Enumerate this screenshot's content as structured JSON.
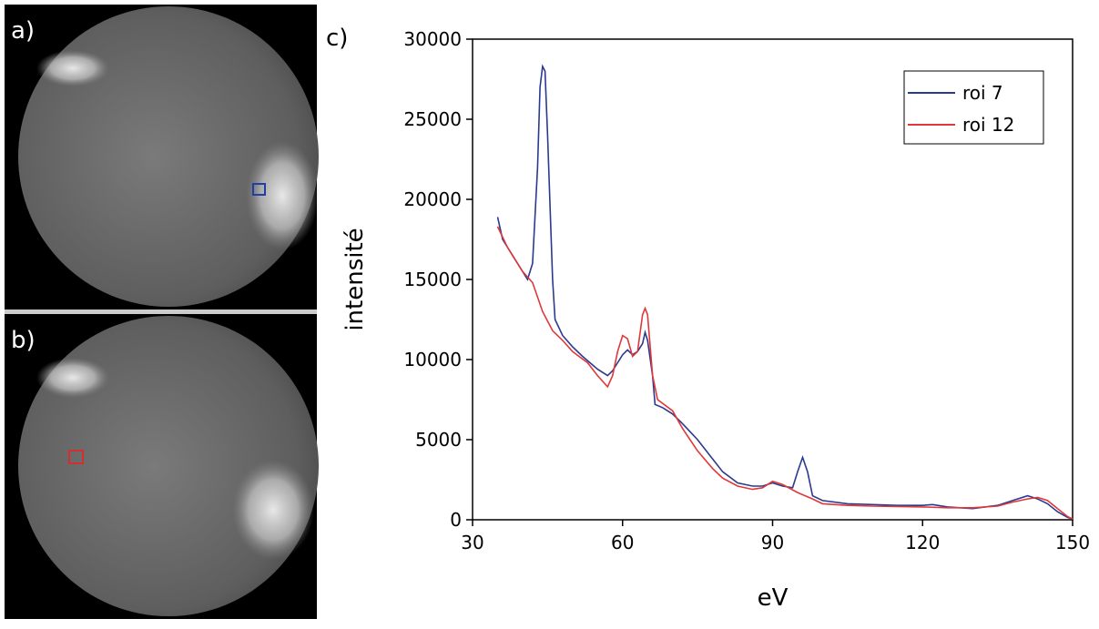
{
  "panels": {
    "a": "a)",
    "b": "b)"
  },
  "chart_data": {
    "type": "line",
    "panel_label": "c)",
    "xlabel": "eV",
    "ylabel": "intensité",
    "xlim": [
      30,
      150
    ],
    "xticks": [
      30,
      60,
      90,
      120,
      150
    ],
    "ylim": [
      0,
      30000
    ],
    "yticks": [
      0,
      5000,
      10000,
      15000,
      20000,
      25000,
      30000
    ],
    "legend": "upper right",
    "series": [
      {
        "name": "roi 7",
        "color": "#2b3a8f",
        "x": [
          35,
          36,
          38,
          40,
          41,
          42,
          43,
          43.5,
          44,
          44.5,
          45,
          46,
          46.5,
          48,
          50,
          52,
          55,
          57,
          58,
          59,
          60,
          61,
          62,
          63,
          64,
          64.5,
          65,
          66,
          66.5,
          68,
          70,
          72,
          75,
          78,
          80,
          83,
          86,
          88,
          90,
          92,
          94,
          95,
          96,
          97,
          98,
          100,
          105,
          110,
          115,
          120,
          122,
          125,
          130,
          135,
          138,
          141,
          143,
          145,
          147,
          149,
          150
        ],
        "values": [
          18900,
          17500,
          16500,
          15500,
          15000,
          16000,
          22000,
          27000,
          28300,
          28000,
          24000,
          15000,
          12500,
          11500,
          10800,
          10200,
          9400,
          9000,
          9300,
          9800,
          10300,
          10600,
          10300,
          10500,
          11000,
          11700,
          11200,
          9000,
          7200,
          7000,
          6600,
          6000,
          5000,
          3800,
          3000,
          2300,
          2100,
          2100,
          2300,
          2100,
          2000,
          3000,
          3900,
          3000,
          1500,
          1200,
          1000,
          950,
          900,
          900,
          950,
          800,
          700,
          900,
          1200,
          1500,
          1300,
          1000,
          500,
          150,
          50
        ]
      },
      {
        "name": "roi 12",
        "color": "#e0383a",
        "x": [
          35,
          37,
          40,
          42,
          44,
          46,
          48,
          50,
          53,
          55,
          57,
          58,
          59,
          60,
          61,
          62,
          63,
          64,
          64.5,
          65,
          66,
          67,
          70,
          72,
          75,
          78,
          80,
          83,
          86,
          88,
          90,
          92,
          95,
          98,
          100,
          105,
          110,
          120,
          125,
          130,
          135,
          138,
          141,
          143,
          145,
          147,
          149,
          150
        ],
        "values": [
          18300,
          17000,
          15500,
          14800,
          13000,
          11800,
          11200,
          10500,
          9800,
          9000,
          8300,
          9000,
          10500,
          11500,
          11300,
          10200,
          10500,
          12800,
          13200,
          12800,
          9000,
          7500,
          6800,
          5700,
          4300,
          3200,
          2600,
          2100,
          1900,
          2000,
          2400,
          2200,
          1700,
          1300,
          1000,
          900,
          850,
          800,
          750,
          750,
          850,
          1100,
          1300,
          1400,
          1200,
          700,
          200,
          50
        ]
      }
    ]
  }
}
